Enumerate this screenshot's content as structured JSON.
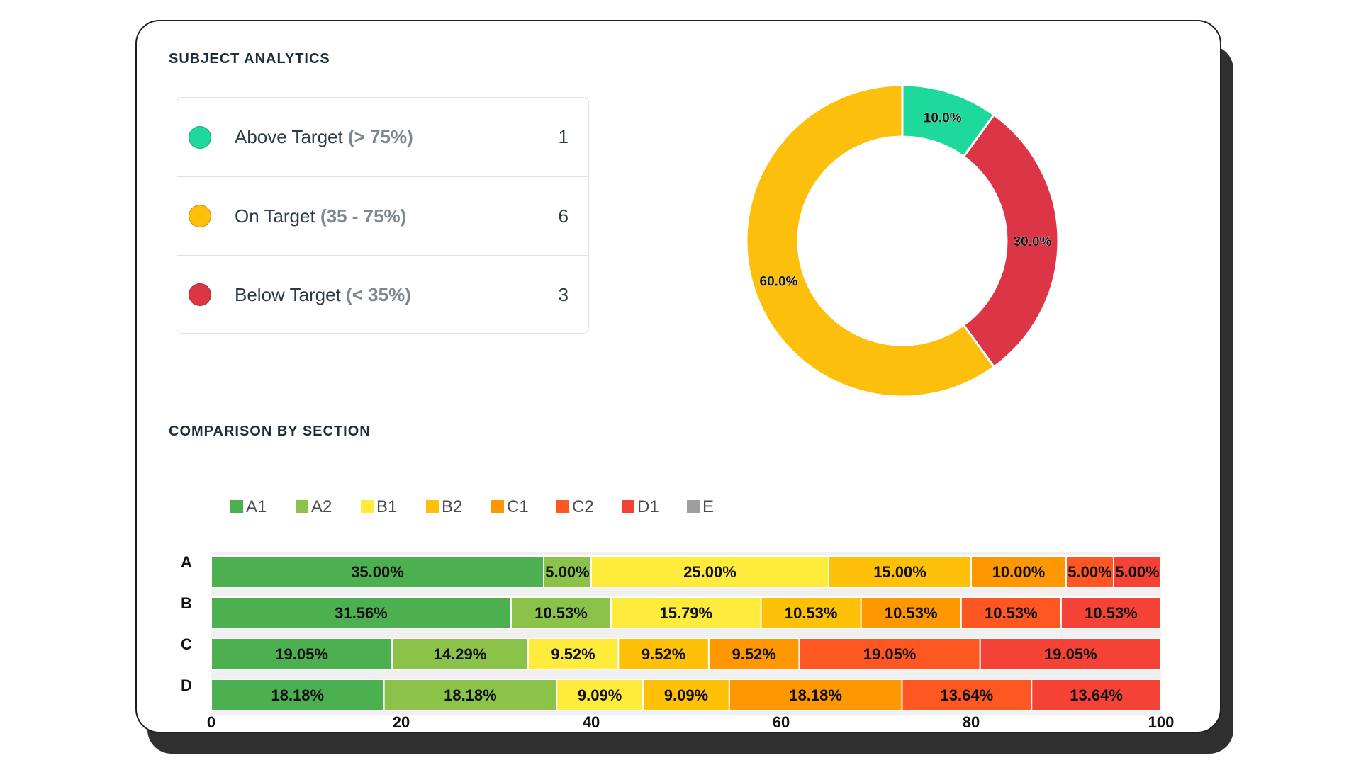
{
  "subject_analytics": {
    "title": "SUBJECT ANALYTICS",
    "rows": [
      {
        "label": "Above Target",
        "range": "(> 75%)",
        "count": "1",
        "color": "#1dd99c"
      },
      {
        "label": "On Target",
        "range": "(35 - 75%)",
        "count": "6",
        "color": "#fcbf0c"
      },
      {
        "label": "Below Target",
        "range": "(< 35%)",
        "count": "3",
        "color": "#dc3545"
      }
    ]
  },
  "comparison": {
    "title": "COMPARISON BY SECTION"
  },
  "chart_data": [
    {
      "type": "pie",
      "subtype": "donut",
      "labels": [
        "Above Target",
        "Below Target",
        "On Target"
      ],
      "values": [
        10.0,
        30.0,
        60.0
      ],
      "value_labels": [
        "10.0%",
        "30.0%",
        "60.0%"
      ],
      "colors": [
        "#1dd99c",
        "#dc3545",
        "#fcbf0c"
      ]
    },
    {
      "type": "bar",
      "orientation": "horizontal",
      "stacked": true,
      "categories": [
        "A",
        "B",
        "C",
        "D"
      ],
      "series": [
        {
          "name": "A1",
          "color": "#4caf50",
          "values": [
            35.0,
            31.56,
            19.05,
            18.18
          ],
          "labels": [
            "35.00%",
            "31.56%",
            "19.05%",
            "18.18%"
          ]
        },
        {
          "name": "A2",
          "color": "#8bc34a",
          "values": [
            5.0,
            10.53,
            14.29,
            18.18
          ],
          "labels": [
            "5.00%",
            "10.53%",
            "14.29%",
            "18.18%"
          ]
        },
        {
          "name": "B1",
          "color": "#ffeb3b",
          "values": [
            25.0,
            15.79,
            9.52,
            9.09
          ],
          "labels": [
            "25.00%",
            "15.79%",
            "9.52%",
            "9.09%"
          ]
        },
        {
          "name": "B2",
          "color": "#ffc107",
          "values": [
            15.0,
            10.53,
            9.52,
            9.09
          ],
          "labels": [
            "15.00%",
            "10.53%",
            "9.52%",
            "9.09%"
          ]
        },
        {
          "name": "C1",
          "color": "#ff9800",
          "values": [
            10.0,
            10.53,
            9.52,
            18.18
          ],
          "labels": [
            "10.00%",
            "10.53%",
            "9.52%",
            "18.18%"
          ]
        },
        {
          "name": "C2",
          "color": "#ff5722",
          "values": [
            5.0,
            10.53,
            19.05,
            13.64
          ],
          "labels": [
            "5.00%",
            "10.53%",
            "19.05%",
            "13.64%"
          ]
        },
        {
          "name": "D1",
          "color": "#f44336",
          "values": [
            5.0,
            10.53,
            19.05,
            13.64
          ],
          "labels": [
            "5.00%",
            "10.53%",
            "19.05%",
            "13.64%"
          ]
        },
        {
          "name": "E",
          "color": "#9e9e9e",
          "values": [
            0,
            0,
            0,
            0
          ],
          "labels": [
            "",
            "",
            "",
            ""
          ]
        }
      ],
      "xlim": [
        0,
        100
      ],
      "xticks": [
        "0",
        "20",
        "40",
        "60",
        "80",
        "100"
      ],
      "legend": "top-left"
    }
  ]
}
